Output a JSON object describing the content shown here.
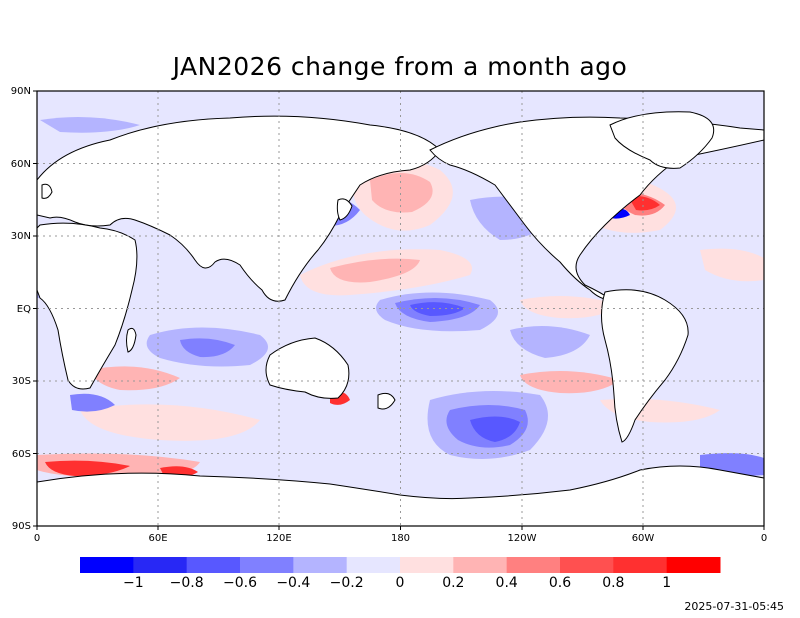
{
  "map": {
    "title": "JAN2026 change from a month ago",
    "lat_labels": [
      "90N",
      "60N",
      "30N",
      "EQ",
      "30S",
      "60S",
      "90S"
    ],
    "lon_labels": [
      "0",
      "60E",
      "120E",
      "180",
      "120W",
      "60W",
      "0"
    ],
    "colorbar": {
      "labels": [
        "−1",
        "−0.8",
        "−0.6",
        "−0.4",
        "−0.2",
        "0",
        "0.2",
        "0.4",
        "0.6",
        "0.8",
        "1"
      ],
      "colors": [
        "#0000ff",
        "#2828f5",
        "#5858ff",
        "#8080ff",
        "#b4b4ff",
        "#e6e6ff",
        "#ffe0e0",
        "#ffb4b4",
        "#ff8080",
        "#ff5050",
        "#ff3030",
        "#ff0000"
      ]
    },
    "timestamp": "2025-07-31-05:45"
  }
}
